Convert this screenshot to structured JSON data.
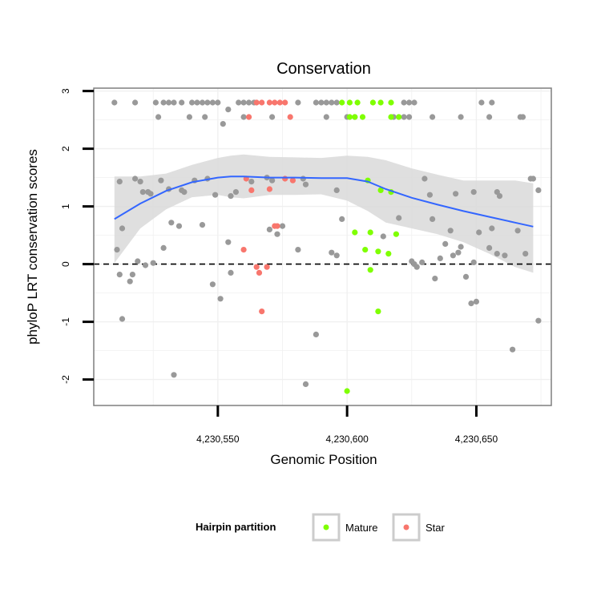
{
  "chart_data": {
    "type": "scatter",
    "title": "Conservation",
    "xlabel": "Genomic Position",
    "ylabel": "phyloP LRT conservation scores",
    "xlim": [
      4230502,
      4230679
    ],
    "ylim": [
      -2.45,
      3.05
    ],
    "x_ticks": [
      {
        "value": 4230550,
        "label": "4,230,550"
      },
      {
        "value": 4230600,
        "label": "4,230,600"
      },
      {
        "value": 4230650,
        "label": "4,230,650"
      }
    ],
    "y_ticks": [
      {
        "value": -2,
        "label": "-2"
      },
      {
        "value": -1,
        "label": "-1"
      },
      {
        "value": 0,
        "label": "0"
      },
      {
        "value": 1,
        "label": "1"
      },
      {
        "value": 2,
        "label": "2"
      },
      {
        "value": 3,
        "label": "3"
      }
    ],
    "reference_line": {
      "y": 0,
      "style": "dashed"
    },
    "legend": {
      "title": "Hairpin partition",
      "position": "bottom",
      "entries": [
        {
          "label": "Mature",
          "color": "#7fff00"
        },
        {
          "label": "Star",
          "color": "#f8766d"
        }
      ]
    },
    "colors": {
      "other": "#999999",
      "Mature": "#7fff00",
      "Star": "#f8766d",
      "smooth": "#3366ff",
      "ribbon": "#d9d9d9"
    },
    "series": [
      {
        "group": "other",
        "points": [
          [
            4230510,
            2.8
          ],
          [
            4230518,
            2.8
          ],
          [
            4230526,
            2.8
          ],
          [
            4230529,
            2.8
          ],
          [
            4230531,
            2.8
          ],
          [
            4230533,
            2.8
          ],
          [
            4230536,
            2.8
          ],
          [
            4230540,
            2.8
          ],
          [
            4230542,
            2.8
          ],
          [
            4230544,
            2.8
          ],
          [
            4230546,
            2.8
          ],
          [
            4230548,
            2.8
          ],
          [
            4230550,
            2.8
          ],
          [
            4230558,
            2.8
          ],
          [
            4230581,
            2.8
          ],
          [
            4230588,
            2.8
          ],
          [
            4230590,
            2.8
          ],
          [
            4230592,
            2.8
          ],
          [
            4230594,
            2.8
          ],
          [
            4230596,
            2.8
          ],
          [
            4230622,
            2.8
          ],
          [
            4230624,
            2.8
          ],
          [
            4230626,
            2.8
          ],
          [
            4230652,
            2.8
          ],
          [
            4230656,
            2.8
          ],
          [
            4230560,
            2.8
          ],
          [
            4230562,
            2.8
          ],
          [
            4230564,
            2.8
          ],
          [
            4230527,
            2.55
          ],
          [
            4230539,
            2.55
          ],
          [
            4230545,
            2.55
          ],
          [
            4230560,
            2.55
          ],
          [
            4230571,
            2.55
          ],
          [
            4230592,
            2.55
          ],
          [
            4230600,
            2.55
          ],
          [
            4230603,
            2.55
          ],
          [
            4230618,
            2.55
          ],
          [
            4230622,
            2.55
          ],
          [
            4230624,
            2.55
          ],
          [
            4230633,
            2.55
          ],
          [
            4230644,
            2.55
          ],
          [
            4230655,
            2.55
          ],
          [
            4230667,
            2.55
          ],
          [
            4230668,
            2.55
          ],
          [
            4230554,
            2.68
          ],
          [
            4230552,
            2.43
          ],
          [
            4230512,
            1.43
          ],
          [
            4230518,
            1.48
          ],
          [
            4230520,
            1.43
          ],
          [
            4230521,
            1.25
          ],
          [
            4230523,
            1.25
          ],
          [
            4230524,
            1.22
          ],
          [
            4230528,
            1.45
          ],
          [
            4230531,
            1.3
          ],
          [
            4230536,
            1.28
          ],
          [
            4230537,
            1.25
          ],
          [
            4230541,
            1.45
          ],
          [
            4230546,
            1.48
          ],
          [
            4230549,
            1.2
          ],
          [
            4230555,
            1.18
          ],
          [
            4230557,
            1.25
          ],
          [
            4230563,
            1.43
          ],
          [
            4230569,
            1.5
          ],
          [
            4230571,
            1.45
          ],
          [
            4230583,
            1.48
          ],
          [
            4230584,
            1.38
          ],
          [
            4230596,
            1.28
          ],
          [
            4230630,
            1.48
          ],
          [
            4230632,
            1.2
          ],
          [
            4230642,
            1.22
          ],
          [
            4230649,
            1.25
          ],
          [
            4230658,
            1.25
          ],
          [
            4230659,
            1.18
          ],
          [
            4230671,
            1.48
          ],
          [
            4230672,
            1.48
          ],
          [
            4230674,
            1.28
          ],
          [
            4230511,
            0.25
          ],
          [
            4230513,
            0.62
          ],
          [
            4230519,
            0.05
          ],
          [
            4230522,
            -0.02
          ],
          [
            4230525,
            0.02
          ],
          [
            4230529,
            0.28
          ],
          [
            4230532,
            0.72
          ],
          [
            4230535,
            0.66
          ],
          [
            4230544,
            0.68
          ],
          [
            4230554,
            0.38
          ],
          [
            4230570,
            0.6
          ],
          [
            4230573,
            0.52
          ],
          [
            4230575,
            0.66
          ],
          [
            4230581,
            0.25
          ],
          [
            4230594,
            0.2
          ],
          [
            4230596,
            0.15
          ],
          [
            4230598,
            0.78
          ],
          [
            4230614,
            0.48
          ],
          [
            4230620,
            0.8
          ],
          [
            4230625,
            0.05
          ],
          [
            4230626,
            0.0
          ],
          [
            4230629,
            0.03
          ],
          [
            4230633,
            0.78
          ],
          [
            4230636,
            0.1
          ],
          [
            4230638,
            0.35
          ],
          [
            4230640,
            0.58
          ],
          [
            4230641,
            0.15
          ],
          [
            4230643,
            0.2
          ],
          [
            4230644,
            0.3
          ],
          [
            4230649,
            0.03
          ],
          [
            4230651,
            0.55
          ],
          [
            4230655,
            0.28
          ],
          [
            4230656,
            0.62
          ],
          [
            4230658,
            0.18
          ],
          [
            4230661,
            0.15
          ],
          [
            4230666,
            0.58
          ],
          [
            4230669,
            0.18
          ],
          [
            4230512,
            -0.18
          ],
          [
            4230517,
            -0.18
          ],
          [
            4230516,
            -0.3
          ],
          [
            4230513,
            -0.95
          ],
          [
            4230548,
            -0.35
          ],
          [
            4230551,
            -0.6
          ],
          [
            4230555,
            -0.15
          ],
          [
            4230627,
            -0.05
          ],
          [
            4230634,
            -0.25
          ],
          [
            4230646,
            -0.22
          ],
          [
            4230648,
            -0.68
          ],
          [
            4230650,
            -0.65
          ],
          [
            4230664,
            -1.48
          ],
          [
            4230674,
            -0.98
          ],
          [
            4230533,
            -1.92
          ],
          [
            4230588,
            -1.22
          ],
          [
            4230584,
            -2.08
          ]
        ]
      },
      {
        "group": "Mature",
        "points": [
          [
            4230598,
            2.8
          ],
          [
            4230601,
            2.8
          ],
          [
            4230604,
            2.8
          ],
          [
            4230610,
            2.8
          ],
          [
            4230613,
            2.8
          ],
          [
            4230617,
            2.8
          ],
          [
            4230601,
            2.55
          ],
          [
            4230603,
            2.55
          ],
          [
            4230606,
            2.55
          ],
          [
            4230617,
            2.55
          ],
          [
            4230620,
            2.55
          ],
          [
            4230608,
            1.45
          ],
          [
            4230613,
            1.28
          ],
          [
            4230617,
            1.25
          ],
          [
            4230603,
            0.55
          ],
          [
            4230609,
            0.55
          ],
          [
            4230619,
            0.52
          ],
          [
            4230607,
            0.25
          ],
          [
            4230612,
            0.22
          ],
          [
            4230616,
            0.18
          ],
          [
            4230609,
            -0.1
          ],
          [
            4230612,
            -0.82
          ],
          [
            4230600,
            -2.2
          ]
        ]
      },
      {
        "group": "Star",
        "points": [
          [
            4230565,
            2.8
          ],
          [
            4230567,
            2.8
          ],
          [
            4230570,
            2.8
          ],
          [
            4230572,
            2.8
          ],
          [
            4230574,
            2.8
          ],
          [
            4230576,
            2.8
          ],
          [
            4230562,
            2.55
          ],
          [
            4230578,
            2.55
          ],
          [
            4230561,
            1.48
          ],
          [
            4230563,
            1.28
          ],
          [
            4230570,
            1.3
          ],
          [
            4230576,
            1.48
          ],
          [
            4230579,
            1.45
          ],
          [
            4230572,
            0.66
          ],
          [
            4230573,
            0.66
          ],
          [
            4230560,
            0.25
          ],
          [
            4230565,
            -0.05
          ],
          [
            4230566,
            -0.15
          ],
          [
            4230569,
            -0.05
          ],
          [
            4230567,
            -0.82
          ]
        ]
      }
    ],
    "smooth": {
      "x": [
        4230510,
        4230520,
        4230530,
        4230540,
        4230550,
        4230555,
        4230560,
        4230570,
        4230580,
        4230590,
        4230600,
        4230608,
        4230615,
        4230625,
        4230635,
        4230645,
        4230655,
        4230665,
        4230672
      ],
      "y": [
        0.78,
        1.05,
        1.27,
        1.42,
        1.5,
        1.52,
        1.52,
        1.5,
        1.5,
        1.49,
        1.49,
        1.43,
        1.3,
        1.15,
        1.03,
        0.92,
        0.82,
        0.72,
        0.65
      ],
      "lower": [
        0.02,
        0.62,
        0.95,
        1.16,
        1.2,
        1.16,
        1.14,
        1.2,
        1.2,
        1.21,
        1.1,
        0.92,
        0.72,
        0.62,
        0.52,
        0.38,
        0.18,
        -0.05,
        -0.15
      ],
      "upper": [
        1.52,
        1.52,
        1.57,
        1.72,
        1.84,
        1.88,
        1.9,
        1.86,
        1.85,
        1.84,
        1.88,
        1.86,
        1.8,
        1.66,
        1.55,
        1.45,
        1.45,
        1.45,
        1.4
      ]
    }
  }
}
